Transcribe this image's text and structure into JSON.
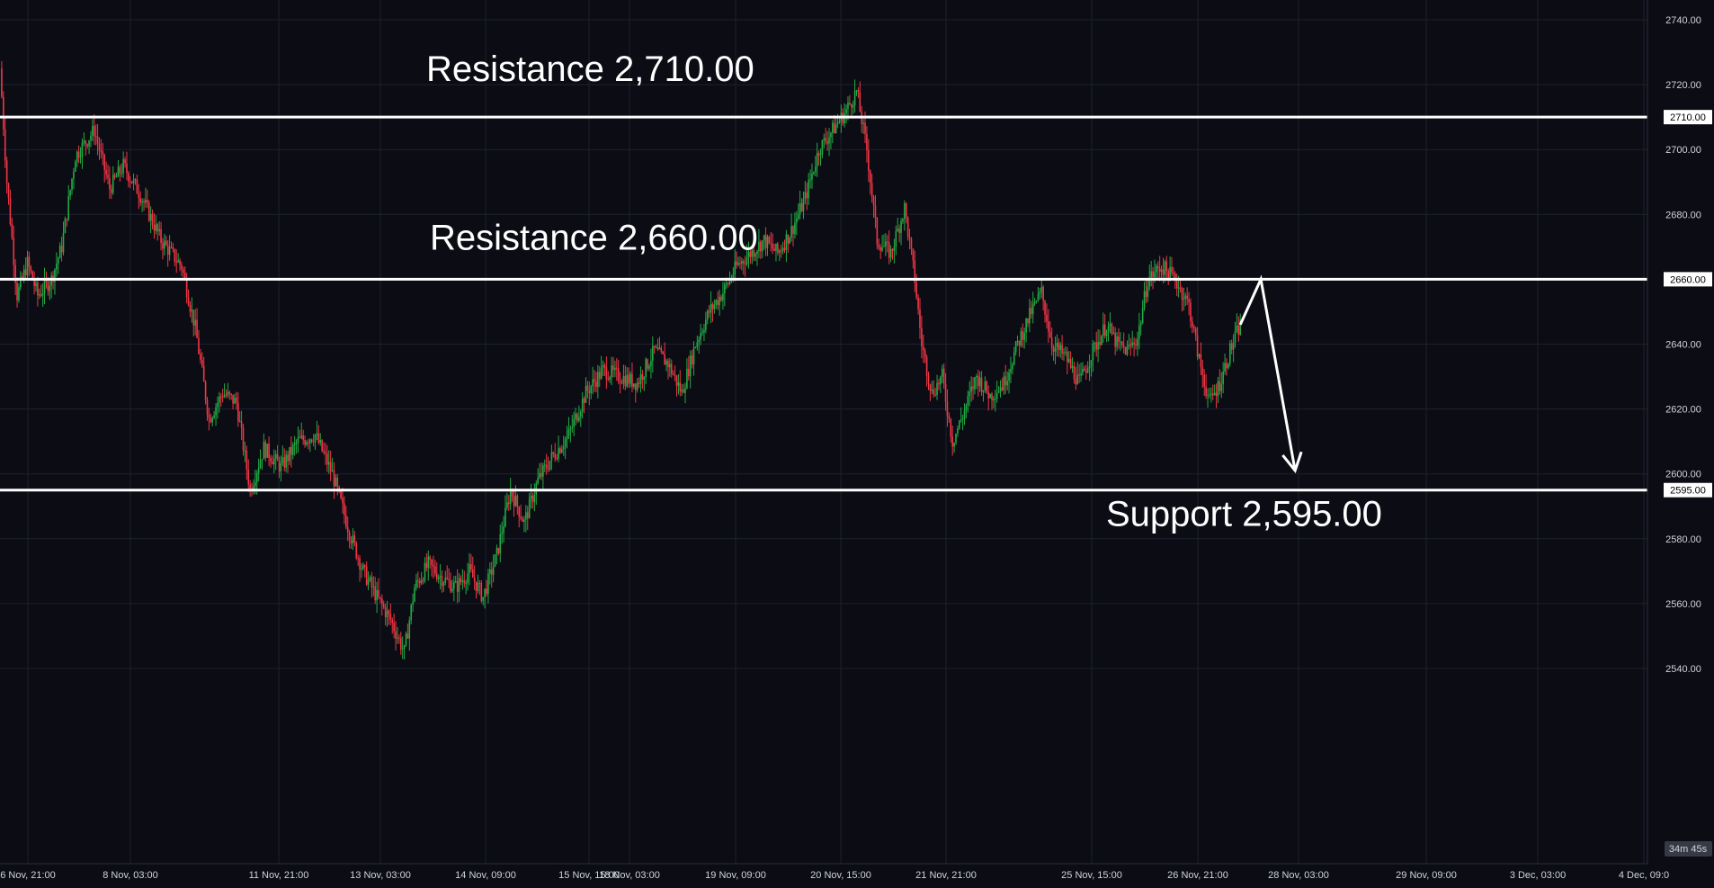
{
  "colors": {
    "background": "#0b0c14",
    "grid": "#1e2230",
    "up": "#22ab44",
    "down": "#f23645",
    "level": "#ffffff",
    "text": "#d1d4dc",
    "axis_box": "#363a45"
  },
  "countdown": "34m 45s",
  "chart_data": {
    "type": "candlestick",
    "title": "",
    "ylim": [
      2530,
      2745
    ],
    "y_ticks": [
      "2740.00",
      "2720.00",
      "2700.00",
      "2680.00",
      "2660.00",
      "2640.00",
      "2620.00",
      "2600.00",
      "2580.00",
      "2560.00",
      "2540.00"
    ],
    "x_ticks": [
      "6 Nov, 21:00",
      "8 Nov, 03:00",
      "11 Nov, 21:00",
      "13 Nov, 03:00",
      "14 Nov, 09:00",
      "15 Nov, 15:00",
      "18 Nov, 03:00",
      "19 Nov, 09:00",
      "20 Nov, 15:00",
      "21 Nov, 21:00",
      "25 Nov, 15:00",
      "26 Nov, 21:00",
      "28 Nov, 03:00",
      "29 Nov, 09:00",
      "3 Dec, 03:00",
      "4 Dec, 09:0"
    ],
    "levels": [
      {
        "label": "Resistance 2,710.00",
        "value": 2710,
        "tag": "2710.00"
      },
      {
        "label": "Resistance 2,660.00",
        "value": 2660,
        "tag": "2660.00"
      },
      {
        "label": "Support 2,595.00",
        "value": 2595,
        "tag": "2595.00"
      }
    ],
    "close_path": [
      [
        0,
        2725
      ],
      [
        4,
        2690
      ],
      [
        10,
        2655
      ],
      [
        16,
        2665
      ],
      [
        22,
        2655
      ],
      [
        30,
        2660
      ],
      [
        36,
        2670
      ],
      [
        44,
        2698
      ],
      [
        55,
        2706
      ],
      [
        64,
        2688
      ],
      [
        72,
        2695
      ],
      [
        82,
        2686
      ],
      [
        94,
        2672
      ],
      [
        106,
        2664
      ],
      [
        114,
        2645
      ],
      [
        122,
        2617
      ],
      [
        130,
        2625
      ],
      [
        138,
        2622
      ],
      [
        146,
        2595
      ],
      [
        154,
        2608
      ],
      [
        164,
        2602
      ],
      [
        174,
        2610
      ],
      [
        184,
        2612
      ],
      [
        194,
        2600
      ],
      [
        204,
        2582
      ],
      [
        212,
        2570
      ],
      [
        220,
        2562
      ],
      [
        228,
        2555
      ],
      [
        236,
        2545
      ],
      [
        242,
        2565
      ],
      [
        250,
        2572
      ],
      [
        258,
        2568
      ],
      [
        266,
        2565
      ],
      [
        274,
        2570
      ],
      [
        282,
        2562
      ],
      [
        290,
        2575
      ],
      [
        298,
        2595
      ],
      [
        306,
        2585
      ],
      [
        314,
        2598
      ],
      [
        322,
        2605
      ],
      [
        332,
        2612
      ],
      [
        342,
        2625
      ],
      [
        352,
        2632
      ],
      [
        362,
        2630
      ],
      [
        372,
        2628
      ],
      [
        382,
        2638
      ],
      [
        390,
        2634
      ],
      [
        398,
        2625
      ],
      [
        406,
        2640
      ],
      [
        414,
        2650
      ],
      [
        422,
        2656
      ],
      [
        430,
        2664
      ],
      [
        438,
        2668
      ],
      [
        446,
        2672
      ],
      [
        454,
        2668
      ],
      [
        462,
        2675
      ],
      [
        470,
        2685
      ],
      [
        478,
        2700
      ],
      [
        486,
        2706
      ],
      [
        494,
        2712
      ],
      [
        500,
        2718
      ],
      [
        506,
        2700
      ],
      [
        512,
        2672
      ],
      [
        520,
        2668
      ],
      [
        528,
        2682
      ],
      [
        534,
        2660
      ],
      [
        538,
        2640
      ],
      [
        544,
        2625
      ],
      [
        550,
        2630
      ],
      [
        556,
        2610
      ],
      [
        562,
        2618
      ],
      [
        570,
        2630
      ],
      [
        578,
        2624
      ],
      [
        586,
        2628
      ],
      [
        594,
        2640
      ],
      [
        602,
        2650
      ],
      [
        608,
        2656
      ],
      [
        614,
        2640
      ],
      [
        622,
        2636
      ],
      [
        630,
        2628
      ],
      [
        638,
        2638
      ],
      [
        646,
        2646
      ],
      [
        652,
        2640
      ],
      [
        658,
        2638
      ],
      [
        664,
        2642
      ],
      [
        670,
        2660
      ],
      [
        678,
        2664
      ],
      [
        686,
        2660
      ],
      [
        694,
        2652
      ],
      [
        700,
        2635
      ],
      [
        706,
        2622
      ],
      [
        712,
        2628
      ],
      [
        718,
        2638
      ],
      [
        724,
        2646
      ]
    ],
    "forecast_path": [
      [
        724,
        2646
      ],
      [
        736,
        2660
      ],
      [
        756,
        2601
      ]
    ]
  }
}
